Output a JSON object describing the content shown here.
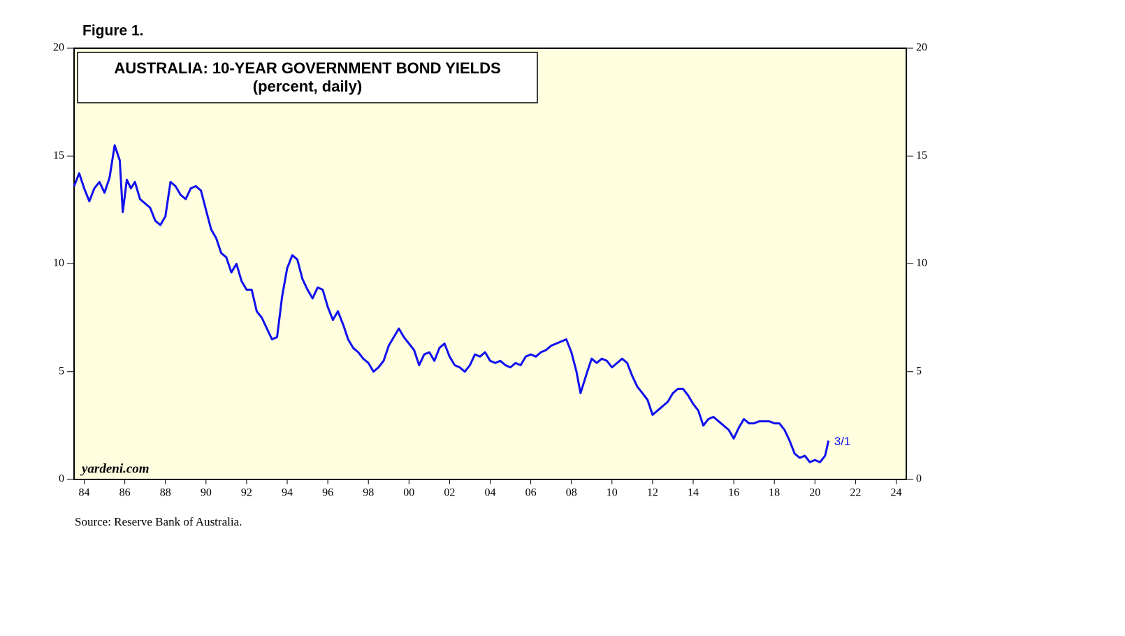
{
  "chart_data": {
    "type": "line",
    "figure_label": "Figure 1.",
    "title": "AUSTRALIA: 10-YEAR GOVERNMENT BOND YIELDS",
    "subtitle": "(percent, daily)",
    "watermark": "yardeni.com",
    "source": "Source: Reserve Bank of Australia.",
    "annotation": "3/1",
    "color": "#1010ee",
    "background": "#ffffe0",
    "x": [
      1984.0,
      1984.25,
      1984.5,
      1984.75,
      1985.0,
      1985.25,
      1985.5,
      1985.75,
      1986.0,
      1986.25,
      1986.4,
      1986.6,
      1986.8,
      1987.0,
      1987.25,
      1987.5,
      1987.75,
      1988.0,
      1988.25,
      1988.5,
      1988.75,
      1989.0,
      1989.25,
      1989.5,
      1989.75,
      1990.0,
      1990.25,
      1990.5,
      1990.75,
      1991.0,
      1991.25,
      1991.5,
      1991.75,
      1992.0,
      1992.25,
      1992.5,
      1992.75,
      1993.0,
      1993.25,
      1993.5,
      1993.75,
      1994.0,
      1994.25,
      1994.5,
      1994.75,
      1995.0,
      1995.25,
      1995.5,
      1995.75,
      1996.0,
      1996.25,
      1996.5,
      1996.75,
      1997.0,
      1997.25,
      1997.5,
      1997.75,
      1998.0,
      1998.25,
      1998.5,
      1998.75,
      1999.0,
      1999.25,
      1999.5,
      1999.75,
      2000.0,
      2000.25,
      2000.5,
      2000.75,
      2001.0,
      2001.25,
      2001.5,
      2001.75,
      2002.0,
      2002.25,
      2002.5,
      2002.75,
      2003.0,
      2003.25,
      2003.5,
      2003.75,
      2004.0,
      2004.25,
      2004.5,
      2004.75,
      2005.0,
      2005.25,
      2005.5,
      2005.75,
      2006.0,
      2006.25,
      2006.5,
      2006.75,
      2007.0,
      2007.25,
      2007.5,
      2007.75,
      2008.0,
      2008.25,
      2008.5,
      2008.75,
      2008.95,
      2009.25,
      2009.5,
      2009.75,
      2010.0,
      2010.25,
      2010.5,
      2010.75,
      2011.0,
      2011.25,
      2011.5,
      2011.75,
      2012.0,
      2012.25,
      2012.5,
      2012.75,
      2013.0,
      2013.25,
      2013.5,
      2013.75,
      2014.0,
      2014.25,
      2014.5,
      2014.75,
      2015.0,
      2015.25,
      2015.5,
      2015.75,
      2016.0,
      2016.25,
      2016.5,
      2016.75,
      2017.0,
      2017.25,
      2017.5,
      2017.75,
      2018.0,
      2018.25,
      2018.5,
      2018.75,
      2019.0,
      2019.25,
      2019.5,
      2019.75,
      2020.0,
      2020.25,
      2020.5,
      2020.75,
      2021.0,
      2021.17
    ],
    "values": [
      13.6,
      14.2,
      13.5,
      12.9,
      13.5,
      13.8,
      13.3,
      14.0,
      15.5,
      14.8,
      12.4,
      13.9,
      13.5,
      13.8,
      13.0,
      12.8,
      12.6,
      12.0,
      11.8,
      12.2,
      13.8,
      13.6,
      13.2,
      13.0,
      13.5,
      13.6,
      13.4,
      12.5,
      11.6,
      11.2,
      10.5,
      10.3,
      9.6,
      10.0,
      9.2,
      8.8,
      8.8,
      7.8,
      7.5,
      7.0,
      6.5,
      6.6,
      8.5,
      9.8,
      10.4,
      10.2,
      9.3,
      8.8,
      8.4,
      8.9,
      8.8,
      8.0,
      7.4,
      7.8,
      7.2,
      6.5,
      6.1,
      5.9,
      5.6,
      5.4,
      5.0,
      5.2,
      5.5,
      6.2,
      6.6,
      7.0,
      6.6,
      6.3,
      6.0,
      5.3,
      5.8,
      5.9,
      5.5,
      6.1,
      6.3,
      5.7,
      5.3,
      5.2,
      5.0,
      5.3,
      5.8,
      5.7,
      5.9,
      5.5,
      5.4,
      5.5,
      5.3,
      5.2,
      5.4,
      5.3,
      5.7,
      5.8,
      5.7,
      5.9,
      6.0,
      6.2,
      6.3,
      6.4,
      6.5,
      5.9,
      5.0,
      4.0,
      4.9,
      5.6,
      5.4,
      5.6,
      5.5,
      5.2,
      5.4,
      5.6,
      5.4,
      4.8,
      4.3,
      4.0,
      3.7,
      3.0,
      3.2,
      3.4,
      3.6,
      4.0,
      4.2,
      4.2,
      3.9,
      3.5,
      3.2,
      2.5,
      2.8,
      2.9,
      2.7,
      2.5,
      2.3,
      1.9,
      2.4,
      2.8,
      2.6,
      2.6,
      2.7,
      2.7,
      2.7,
      2.6,
      2.6,
      2.3,
      1.8,
      1.2,
      1.0,
      1.1,
      0.8,
      0.9,
      0.8,
      1.1,
      1.8
    ],
    "xlim": [
      1984,
      2025
    ],
    "xticks": [
      {
        "value": 1984.5,
        "label": "84"
      },
      {
        "value": 1986.5,
        "label": "86"
      },
      {
        "value": 1988.5,
        "label": "88"
      },
      {
        "value": 1990.5,
        "label": "90"
      },
      {
        "value": 1992.5,
        "label": "92"
      },
      {
        "value": 1994.5,
        "label": "94"
      },
      {
        "value": 1996.5,
        "label": "96"
      },
      {
        "value": 1998.5,
        "label": "98"
      },
      {
        "value": 2000.5,
        "label": "00"
      },
      {
        "value": 2002.5,
        "label": "02"
      },
      {
        "value": 2004.5,
        "label": "04"
      },
      {
        "value": 2006.5,
        "label": "06"
      },
      {
        "value": 2008.5,
        "label": "08"
      },
      {
        "value": 2010.5,
        "label": "10"
      },
      {
        "value": 2012.5,
        "label": "12"
      },
      {
        "value": 2014.5,
        "label": "14"
      },
      {
        "value": 2016.5,
        "label": "16"
      },
      {
        "value": 2018.5,
        "label": "18"
      },
      {
        "value": 2020.5,
        "label": "20"
      },
      {
        "value": 2022.5,
        "label": "22"
      },
      {
        "value": 2024.5,
        "label": "24"
      }
    ],
    "ylim": [
      0,
      20
    ],
    "yticks": [
      0,
      5,
      10,
      15,
      20
    ]
  }
}
